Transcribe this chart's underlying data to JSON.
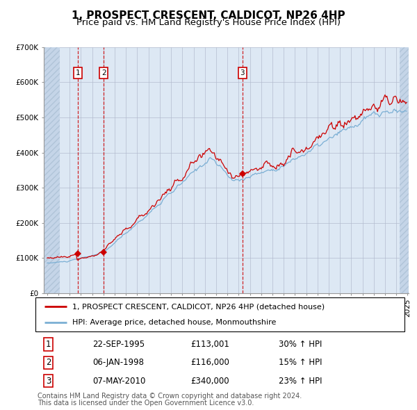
{
  "title": "1, PROSPECT CRESCENT, CALDICOT, NP26 4HP",
  "subtitle": "Price paid vs. HM Land Registry's House Price Index (HPI)",
  "ylim": [
    0,
    700000
  ],
  "yticks": [
    0,
    100000,
    200000,
    300000,
    400000,
    500000,
    600000,
    700000
  ],
  "ytick_labels": [
    "£0",
    "£100K",
    "£200K",
    "£300K",
    "£400K",
    "£500K",
    "£600K",
    "£700K"
  ],
  "x_start_year": 1993,
  "x_end_year": 2025,
  "sale_prices": [
    113001,
    116000,
    340000
  ],
  "sale_decimal_years": [
    1995.728,
    1998.014,
    2010.347
  ],
  "sale_labels": [
    "1",
    "2",
    "3"
  ],
  "line_color_red": "#cc0000",
  "line_color_blue": "#7bafd4",
  "marker_color": "#cc0000",
  "vline_color": "#cc0000",
  "grid_color": "#b0b8cc",
  "bg_color_main": "#dde8f4",
  "bg_color_hatch": "#c5d5e8",
  "hatch_color": "#b0c4d8",
  "legend_line1": "1, PROSPECT CRESCENT, CALDICOT, NP26 4HP (detached house)",
  "legend_line2": "HPI: Average price, detached house, Monmouthshire",
  "table_rows": [
    [
      "1",
      "22-SEP-1995",
      "£113,001",
      "30% ↑ HPI"
    ],
    [
      "2",
      "06-JAN-1998",
      "£116,000",
      "15% ↑ HPI"
    ],
    [
      "3",
      "07-MAY-2010",
      "£340,000",
      "23% ↑ HPI"
    ]
  ],
  "footer": "Contains HM Land Registry data © Crown copyright and database right 2024.\nThis data is licensed under the Open Government Licence v3.0.",
  "title_fontsize": 11,
  "subtitle_fontsize": 9.5,
  "tick_fontsize": 7.5,
  "legend_fontsize": 8,
  "table_fontsize": 8.5,
  "footer_fontsize": 7
}
